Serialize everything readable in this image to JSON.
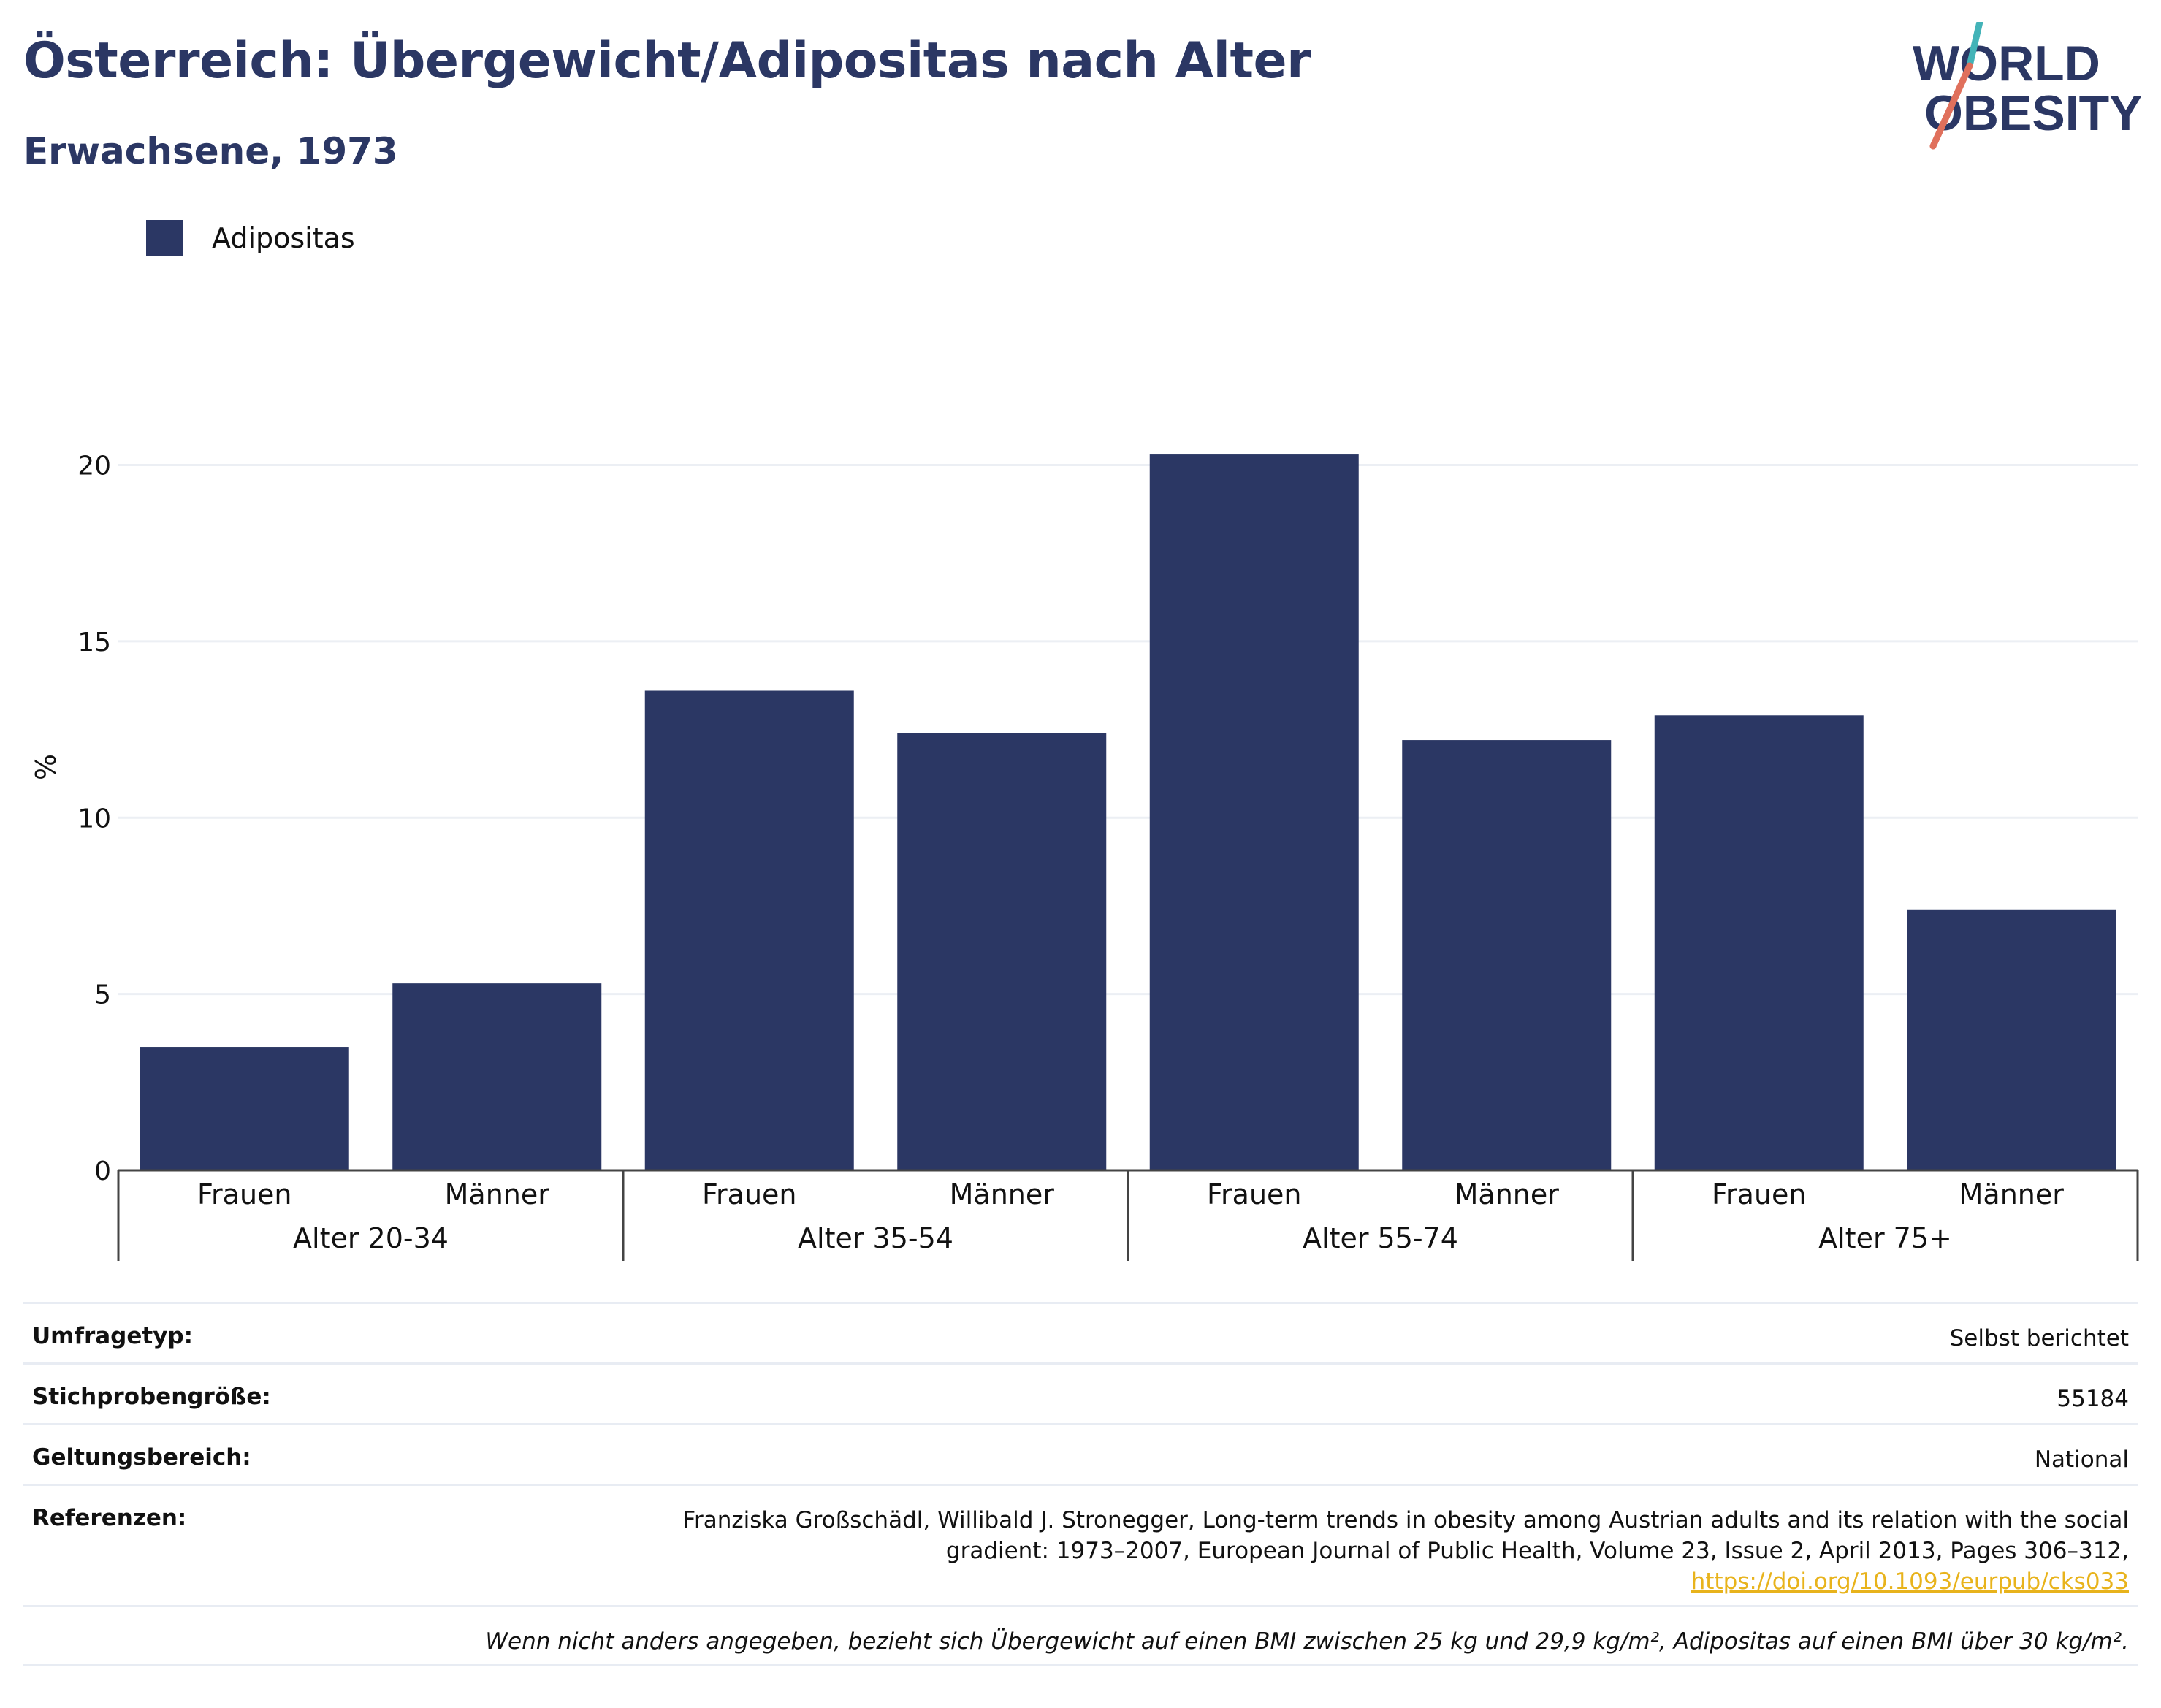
{
  "title": "Österreich: Übergewicht/Adipositas nach Alter",
  "subtitle": "Erwachsene, 1973",
  "logo": {
    "line1": "WORLD",
    "line2": "OBESITY",
    "colors": [
      "#2b3764",
      "#43b3b8",
      "#e0705c"
    ]
  },
  "colors": {
    "bar": "#2b3764",
    "grid": "#eceff4",
    "axis": "#444444"
  },
  "chart_data": {
    "type": "bar",
    "legend": [
      {
        "name": "Adipositas",
        "color": "#2b3764"
      }
    ],
    "ylabel": "%",
    "ylim": [
      0,
      22
    ],
    "yticks": [
      0,
      5,
      10,
      15,
      20
    ],
    "groups": [
      {
        "label": "Alter 20-34",
        "categories": [
          "Frauen",
          "Männer"
        ]
      },
      {
        "label": "Alter 35-54",
        "categories": [
          "Frauen",
          "Männer"
        ]
      },
      {
        "label": "Alter 55-74",
        "categories": [
          "Frauen",
          "Männer"
        ]
      },
      {
        "label": "Alter 75+",
        "categories": [
          "Frauen",
          "Männer"
        ]
      }
    ],
    "series": [
      {
        "name": "Adipositas",
        "values": [
          3.5,
          5.3,
          13.6,
          12.4,
          20.3,
          12.2,
          12.9,
          7.4
        ]
      }
    ]
  },
  "meta": {
    "survey_label": "Umfragetyp:",
    "survey_value": "Selbst berichtet",
    "sample_label": "Stichprobengröße:",
    "sample_value": "55184",
    "scope_label": "Geltungsbereich:",
    "scope_value": "National",
    "refs_label": "Referenzen:",
    "refs_text": "Franziska Großschädl, Willibald J. Stronegger, Long-term trends in obesity among Austrian adults and its relation with the social gradient: 1973–2007, European Journal of Public Health, Volume 23, Issue 2, April 2013, Pages 306–312,",
    "refs_link": "https://doi.org/10.1093/eurpub/cks033",
    "note": "Wenn nicht anders angegeben, bezieht sich Übergewicht auf einen BMI zwischen 25 kg und 29,9 kg/m², Adipositas auf einen BMI über 30 kg/m²."
  }
}
